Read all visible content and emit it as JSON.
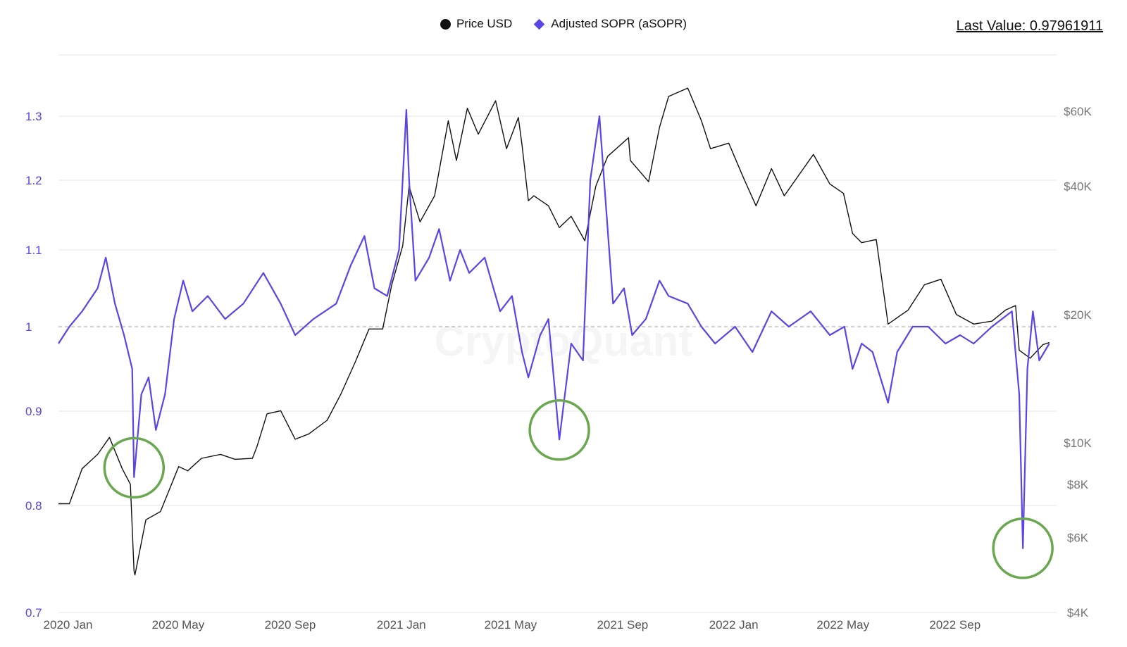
{
  "legend": {
    "price_label": "Price USD",
    "sopr_label": "Adjusted SOPR (aSOPR)"
  },
  "last_value_text": "Last Value: 0.97961911",
  "watermark": "CryptoQuant",
  "colors": {
    "price": "#111111",
    "sopr": "#5b45e6",
    "grid": "#e6e6e6",
    "highlight_circle": "#6aa84f",
    "left_axis": "#5b45e6",
    "right_axis": "#777777"
  },
  "chart_data": {
    "type": "line",
    "x_range": [
      "2019-12-20",
      "2022-12-20"
    ],
    "x_ticks": [
      {
        "date": "2020-01-01",
        "label": "2020 Jan"
      },
      {
        "date": "2020-05-01",
        "label": "2020 May"
      },
      {
        "date": "2020-09-01",
        "label": "2020 Sep"
      },
      {
        "date": "2021-01-01",
        "label": "2021 Jan"
      },
      {
        "date": "2021-05-01",
        "label": "2021 May"
      },
      {
        "date": "2021-09-01",
        "label": "2021 Sep"
      },
      {
        "date": "2022-01-01",
        "label": "2022 Jan"
      },
      {
        "date": "2022-05-01",
        "label": "2022 May"
      },
      {
        "date": "2022-09-01",
        "label": "2022 Sep"
      }
    ],
    "left_axis": {
      "series": "Adjusted SOPR (aSOPR)",
      "scale": "non-linear",
      "range": [
        0.7,
        1.35
      ],
      "ticks": [
        {
          "value": 0.7,
          "label": "0.7"
        },
        {
          "value": 0.8,
          "label": "0.8"
        },
        {
          "value": 0.9,
          "label": "0.9"
        },
        {
          "value": 1.0,
          "label": "1"
        },
        {
          "value": 1.1,
          "label": "1.1"
        },
        {
          "value": 1.2,
          "label": "1.2"
        },
        {
          "value": 1.3,
          "label": "1.3"
        }
      ],
      "reference_line": 1.0
    },
    "right_axis": {
      "series": "Price USD",
      "scale": "log",
      "range": [
        4000,
        70000
      ],
      "ticks": [
        {
          "value": 4000,
          "label": "$4K"
        },
        {
          "value": 6000,
          "label": "$6K"
        },
        {
          "value": 8000,
          "label": "$8K"
        },
        {
          "value": 10000,
          "label": "$10K"
        },
        {
          "value": 20000,
          "label": "$20K"
        },
        {
          "value": 40000,
          "label": "$40K"
        },
        {
          "value": 60000,
          "label": "$60K"
        }
      ]
    },
    "series": [
      {
        "name": "Price USD",
        "axis": "right",
        "points": [
          [
            "2019-12-20",
            7200
          ],
          [
            "2020-01-01",
            7200
          ],
          [
            "2020-01-15",
            8700
          ],
          [
            "2020-02-01",
            9400
          ],
          [
            "2020-02-14",
            10300
          ],
          [
            "2020-02-28",
            8700
          ],
          [
            "2020-03-08",
            8000
          ],
          [
            "2020-03-12",
            5000
          ],
          [
            "2020-03-13",
            4900
          ],
          [
            "2020-03-25",
            6600
          ],
          [
            "2020-04-10",
            6900
          ],
          [
            "2020-04-30",
            8800
          ],
          [
            "2020-05-10",
            8600
          ],
          [
            "2020-05-25",
            9200
          ],
          [
            "2020-06-15",
            9400
          ],
          [
            "2020-07-01",
            9150
          ],
          [
            "2020-07-20",
            9200
          ],
          [
            "2020-07-25",
            9800
          ],
          [
            "2020-08-05",
            11700
          ],
          [
            "2020-08-20",
            11900
          ],
          [
            "2020-09-05",
            10200
          ],
          [
            "2020-09-20",
            10500
          ],
          [
            "2020-10-10",
            11300
          ],
          [
            "2020-10-25",
            13000
          ],
          [
            "2020-11-10",
            15500
          ],
          [
            "2020-11-25",
            18500
          ],
          [
            "2020-12-10",
            18500
          ],
          [
            "2020-12-20",
            23500
          ],
          [
            "2021-01-01",
            29000
          ],
          [
            "2021-01-08",
            40000
          ],
          [
            "2021-01-20",
            33000
          ],
          [
            "2021-02-05",
            38000
          ],
          [
            "2021-02-20",
            57000
          ],
          [
            "2021-03-01",
            46000
          ],
          [
            "2021-03-13",
            61000
          ],
          [
            "2021-03-25",
            53000
          ],
          [
            "2021-04-13",
            63500
          ],
          [
            "2021-04-25",
            49000
          ],
          [
            "2021-05-08",
            58000
          ],
          [
            "2021-05-12",
            50000
          ],
          [
            "2021-05-19",
            37000
          ],
          [
            "2021-05-25",
            38000
          ],
          [
            "2021-06-10",
            36000
          ],
          [
            "2021-06-22",
            32000
          ],
          [
            "2021-07-05",
            34000
          ],
          [
            "2021-07-20",
            29800
          ],
          [
            "2021-08-01",
            40000
          ],
          [
            "2021-08-14",
            47000
          ],
          [
            "2021-09-06",
            52000
          ],
          [
            "2021-09-08",
            46000
          ],
          [
            "2021-09-28",
            41000
          ],
          [
            "2021-10-10",
            55000
          ],
          [
            "2021-10-20",
            65000
          ],
          [
            "2021-11-10",
            68000
          ],
          [
            "2021-11-25",
            57000
          ],
          [
            "2021-12-05",
            49000
          ],
          [
            "2021-12-25",
            50500
          ],
          [
            "2022-01-10",
            42000
          ],
          [
            "2022-01-24",
            36000
          ],
          [
            "2022-02-10",
            44000
          ],
          [
            "2022-02-24",
            38000
          ],
          [
            "2022-03-28",
            47500
          ],
          [
            "2022-04-15",
            40500
          ],
          [
            "2022-04-30",
            38500
          ],
          [
            "2022-05-10",
            31000
          ],
          [
            "2022-05-20",
            29500
          ],
          [
            "2022-06-05",
            30000
          ],
          [
            "2022-06-18",
            19000
          ],
          [
            "2022-07-10",
            20500
          ],
          [
            "2022-07-28",
            23500
          ],
          [
            "2022-08-15",
            24200
          ],
          [
            "2022-09-01",
            20000
          ],
          [
            "2022-09-20",
            19000
          ],
          [
            "2022-10-10",
            19300
          ],
          [
            "2022-10-25",
            20500
          ],
          [
            "2022-11-05",
            21000
          ],
          [
            "2022-11-09",
            16500
          ],
          [
            "2022-11-21",
            15800
          ],
          [
            "2022-12-05",
            17000
          ],
          [
            "2022-12-12",
            17200
          ]
        ]
      },
      {
        "name": "Adjusted SOPR (aSOPR)",
        "axis": "left",
        "points": [
          [
            "2019-12-20",
            0.98
          ],
          [
            "2020-01-01",
            1.0
          ],
          [
            "2020-01-15",
            1.02
          ],
          [
            "2020-02-01",
            1.05
          ],
          [
            "2020-02-10",
            1.09
          ],
          [
            "2020-02-20",
            1.03
          ],
          [
            "2020-03-01",
            0.99
          ],
          [
            "2020-03-10",
            0.95
          ],
          [
            "2020-03-12",
            0.83
          ],
          [
            "2020-03-20",
            0.92
          ],
          [
            "2020-03-28",
            0.94
          ],
          [
            "2020-04-05",
            0.88
          ],
          [
            "2020-04-15",
            0.92
          ],
          [
            "2020-04-25",
            1.01
          ],
          [
            "2020-05-05",
            1.06
          ],
          [
            "2020-05-15",
            1.02
          ],
          [
            "2020-06-01",
            1.04
          ],
          [
            "2020-06-20",
            1.01
          ],
          [
            "2020-07-10",
            1.03
          ],
          [
            "2020-08-01",
            1.07
          ],
          [
            "2020-08-20",
            1.03
          ],
          [
            "2020-09-05",
            0.99
          ],
          [
            "2020-09-25",
            1.01
          ],
          [
            "2020-10-20",
            1.03
          ],
          [
            "2020-11-05",
            1.08
          ],
          [
            "2020-11-20",
            1.12
          ],
          [
            "2020-12-01",
            1.05
          ],
          [
            "2020-12-15",
            1.04
          ],
          [
            "2020-12-28",
            1.1
          ],
          [
            "2021-01-05",
            1.31
          ],
          [
            "2021-01-08",
            1.2
          ],
          [
            "2021-01-15",
            1.06
          ],
          [
            "2021-01-30",
            1.09
          ],
          [
            "2021-02-10",
            1.13
          ],
          [
            "2021-02-22",
            1.06
          ],
          [
            "2021-03-05",
            1.1
          ],
          [
            "2021-03-15",
            1.07
          ],
          [
            "2021-04-01",
            1.09
          ],
          [
            "2021-04-18",
            1.02
          ],
          [
            "2021-05-01",
            1.04
          ],
          [
            "2021-05-12",
            0.97
          ],
          [
            "2021-05-19",
            0.94
          ],
          [
            "2021-06-01",
            0.99
          ],
          [
            "2021-06-10",
            1.01
          ],
          [
            "2021-06-22",
            0.87
          ],
          [
            "2021-07-05",
            0.98
          ],
          [
            "2021-07-18",
            0.96
          ],
          [
            "2021-07-26",
            1.2
          ],
          [
            "2021-08-05",
            1.3
          ],
          [
            "2021-08-20",
            1.03
          ],
          [
            "2021-09-01",
            1.05
          ],
          [
            "2021-09-10",
            0.99
          ],
          [
            "2021-09-25",
            1.01
          ],
          [
            "2021-10-10",
            1.06
          ],
          [
            "2021-10-20",
            1.04
          ],
          [
            "2021-11-10",
            1.03
          ],
          [
            "2021-11-25",
            1.0
          ],
          [
            "2021-12-10",
            0.98
          ],
          [
            "2022-01-01",
            1.0
          ],
          [
            "2022-01-20",
            0.97
          ],
          [
            "2022-02-10",
            1.02
          ],
          [
            "2022-03-01",
            1.0
          ],
          [
            "2022-03-25",
            1.02
          ],
          [
            "2022-04-15",
            0.99
          ],
          [
            "2022-05-01",
            1.0
          ],
          [
            "2022-05-10",
            0.95
          ],
          [
            "2022-05-20",
            0.98
          ],
          [
            "2022-06-01",
            0.97
          ],
          [
            "2022-06-18",
            0.91
          ],
          [
            "2022-06-28",
            0.97
          ],
          [
            "2022-07-15",
            1.0
          ],
          [
            "2022-08-01",
            1.0
          ],
          [
            "2022-08-20",
            0.98
          ],
          [
            "2022-09-05",
            0.99
          ],
          [
            "2022-09-20",
            0.98
          ],
          [
            "2022-10-10",
            1.0
          ],
          [
            "2022-11-01",
            1.02
          ],
          [
            "2022-11-09",
            0.92
          ],
          [
            "2022-11-13",
            0.76
          ],
          [
            "2022-11-18",
            0.95
          ],
          [
            "2022-11-24",
            1.02
          ],
          [
            "2022-12-01",
            0.96
          ],
          [
            "2022-12-12",
            0.98
          ]
        ]
      }
    ],
    "annotations": [
      {
        "type": "circle",
        "date": "2020-03-12",
        "value": 0.84,
        "axis": "left"
      },
      {
        "type": "circle",
        "date": "2021-06-22",
        "value": 0.88,
        "axis": "left"
      },
      {
        "type": "circle",
        "date": "2022-11-13",
        "value": 0.76,
        "axis": "left"
      }
    ]
  }
}
